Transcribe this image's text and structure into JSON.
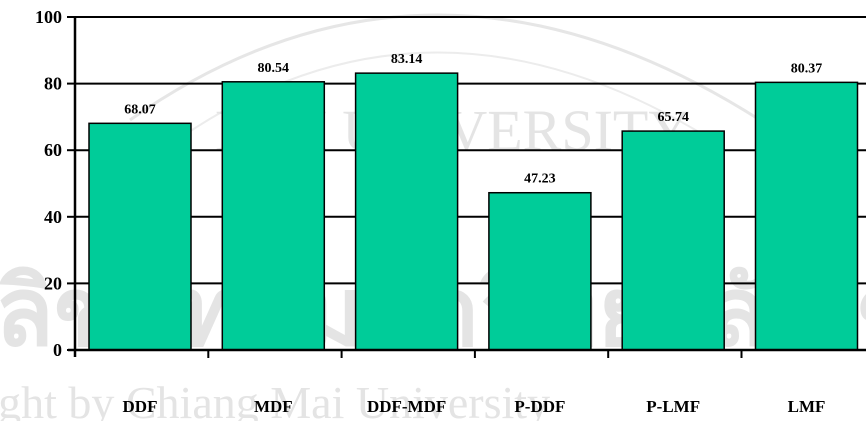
{
  "chart_data": {
    "type": "bar",
    "categories": [
      "DDF",
      "MDF",
      "DDF-MDF",
      "P-DDF",
      "P-LMF",
      "LMF"
    ],
    "values": [
      68.07,
      80.54,
      83.14,
      47.23,
      65.74,
      80.37
    ],
    "data_labels": [
      "68.07",
      "80.54",
      "83.14",
      "47.23",
      "65.74",
      "80.37"
    ],
    "ylim": [
      0,
      100
    ],
    "yticks": [
      0,
      20,
      40,
      60,
      80,
      100
    ],
    "grid": true,
    "bar_color": "#00cc99",
    "watermark": {
      "arc_text": "MAI UNIVERSITY",
      "thai_text": "ลิขสิทธิ์มหาวิทยาลัยเชียงใหม่",
      "footer_text": "right by Chiang Mai University"
    }
  }
}
